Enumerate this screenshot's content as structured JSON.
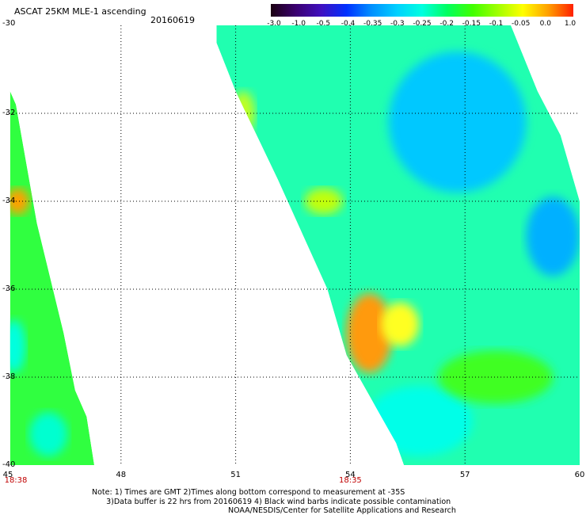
{
  "header": {
    "title": "ASCAT 25KM MLE-1 ascending",
    "date": "20160619"
  },
  "colorbar": {
    "labels": [
      "-3.0",
      "-1.0",
      "-0.5",
      "-0.4",
      "-0.35",
      "-0.3",
      "-0.25",
      "-0.2",
      "-0.15",
      "-0.1",
      "-0.05",
      "0.0",
      "1.0"
    ],
    "colors": [
      "#1a0010",
      "#3a0070",
      "#4010c0",
      "#0030ff",
      "#0090ff",
      "#00d0ff",
      "#00ffe0",
      "#00ff60",
      "#40ff00",
      "#a0ff00",
      "#ffff00",
      "#ffa000",
      "#ff2000"
    ]
  },
  "axes": {
    "lat_labels": [
      "-30",
      "-32",
      "-34",
      "-36",
      "-38",
      "-40"
    ],
    "lon_labels": [
      "45",
      "48",
      "51",
      "54",
      "57",
      "60"
    ],
    "time_labels": [
      {
        "lon": 45,
        "text": "18:38"
      },
      {
        "lon": 54,
        "text": "18:35"
      }
    ]
  },
  "map_data": {
    "lon_range": [
      45,
      60
    ],
    "lat_range": [
      -40,
      -30
    ],
    "gridlines": true,
    "left_swath": [
      [
        45.1,
        -31.5
      ],
      [
        45.25,
        -31.8
      ],
      [
        45.8,
        -34.5
      ],
      [
        46.5,
        -37.0
      ],
      [
        46.8,
        -38.3
      ],
      [
        47.1,
        -38.9
      ],
      [
        47.3,
        -40.0
      ],
      [
        45.1,
        -40.0
      ]
    ],
    "right_swath": [
      [
        52.2,
        -30.0
      ],
      [
        58.2,
        -30.0
      ],
      [
        58.9,
        -31.5
      ],
      [
        59.5,
        -32.5
      ],
      [
        60.0,
        -34.0
      ],
      [
        60.0,
        -40.0
      ],
      [
        55.4,
        -40.0
      ],
      [
        55.2,
        -39.5
      ],
      [
        53.9,
        -37.5
      ],
      [
        53.4,
        -36.0
      ],
      [
        52.1,
        -33.5
      ],
      [
        51.0,
        -31.5
      ],
      [
        50.5,
        -30.4
      ],
      [
        50.5,
        -30.0
      ]
    ],
    "anomalies": [
      {
        "lon": 54.5,
        "lat": -37.0,
        "rx": 0.6,
        "ry": 0.9,
        "color": "#ff9a10"
      },
      {
        "lon": 55.3,
        "lat": -36.8,
        "rx": 0.5,
        "ry": 0.5,
        "color": "#ffff20"
      },
      {
        "lon": 56.8,
        "lat": -32.2,
        "rx": 1.8,
        "ry": 1.6,
        "color": "#00c8ff"
      },
      {
        "lon": 59.3,
        "lat": -34.8,
        "rx": 0.7,
        "ry": 0.9,
        "color": "#00b0ff"
      },
      {
        "lon": 53.3,
        "lat": -34.0,
        "rx": 0.5,
        "ry": 0.3,
        "color": "#c0ff10"
      },
      {
        "lon": 55.8,
        "lat": -39.0,
        "rx": 1.4,
        "ry": 0.8,
        "color": "#00ffe8"
      },
      {
        "lon": 57.8,
        "lat": -38.0,
        "rx": 1.5,
        "ry": 0.6,
        "color": "#40ff20"
      },
      {
        "lon": 45.3,
        "lat": -34.0,
        "rx": 0.3,
        "ry": 0.3,
        "color": "#ffa000"
      },
      {
        "lon": 45.2,
        "lat": -37.3,
        "rx": 0.3,
        "ry": 0.6,
        "color": "#00ffe0"
      },
      {
        "lon": 46.1,
        "lat": -39.3,
        "rx": 0.5,
        "ry": 0.5,
        "color": "#00ffd0"
      },
      {
        "lon": 51.2,
        "lat": -32.0,
        "rx": 0.3,
        "ry": 0.5,
        "color": "#c0ff20"
      }
    ]
  },
  "footer": {
    "note": "Note: 1) Times are GMT 2)Times along bottom correspond to measurement at -35S\n      3)Data buffer is 22 hrs from 20160619 4) Black wind barbs indicate possible contamination",
    "credit": "NOAA/NESDIS/Center for Satellite Applications and Research"
  }
}
